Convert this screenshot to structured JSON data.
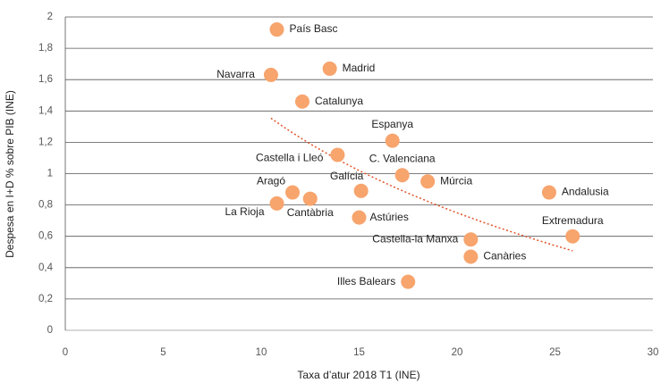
{
  "chart_data": {
    "type": "scatter",
    "x_label": "Taxa d’atur 2018 T1 (INE)",
    "y_label": "Despesa en I+D % sobre PIB (INE)",
    "color": "#f7a46d",
    "trendline": "logarithmic",
    "trendline_color": "#e0542c",
    "grid": true,
    "xlim": [
      0,
      30
    ],
    "xticks": [
      0,
      5,
      10,
      15,
      20,
      25,
      30
    ],
    "ylim": [
      0,
      2
    ],
    "yticks": [
      0,
      {
        "value": 0.2,
        "label": "0,2"
      },
      {
        "value": 0.4,
        "label": "0,4"
      },
      {
        "value": 0.6,
        "label": "0,6"
      },
      {
        "value": 0.8,
        "label": "0,8"
      },
      1,
      {
        "value": 1.2,
        "label": "1,2"
      },
      {
        "value": 1.4,
        "label": "1,4"
      },
      {
        "value": 1.6,
        "label": "1,6"
      },
      {
        "value": 1.8,
        "label": "1,8"
      },
      2
    ],
    "labels": [
      "País Basc",
      "Navarra",
      "Madrid",
      "Catalunya",
      "Espanya",
      "Castella i Lleó",
      "C. Valenciana",
      "Múrcia",
      "Galícia",
      "Andalusia",
      "Aragó",
      "Cantàbria",
      "La Rioja",
      "Astúries",
      "Extremadura",
      "Castella-la Manxa",
      "Canàries",
      "Illes Balears"
    ],
    "x": [
      10.8,
      10.5,
      13.5,
      12.1,
      16.7,
      13.9,
      17.2,
      18.5,
      15.1,
      24.7,
      11.6,
      12.5,
      10.8,
      15.0,
      25.9,
      20.7,
      20.7,
      17.5
    ],
    "values": [
      1.92,
      1.63,
      1.67,
      1.46,
      1.21,
      1.12,
      0.99,
      0.95,
      0.89,
      0.88,
      0.88,
      0.84,
      0.81,
      0.72,
      0.6,
      0.58,
      0.47,
      0.31
    ]
  }
}
